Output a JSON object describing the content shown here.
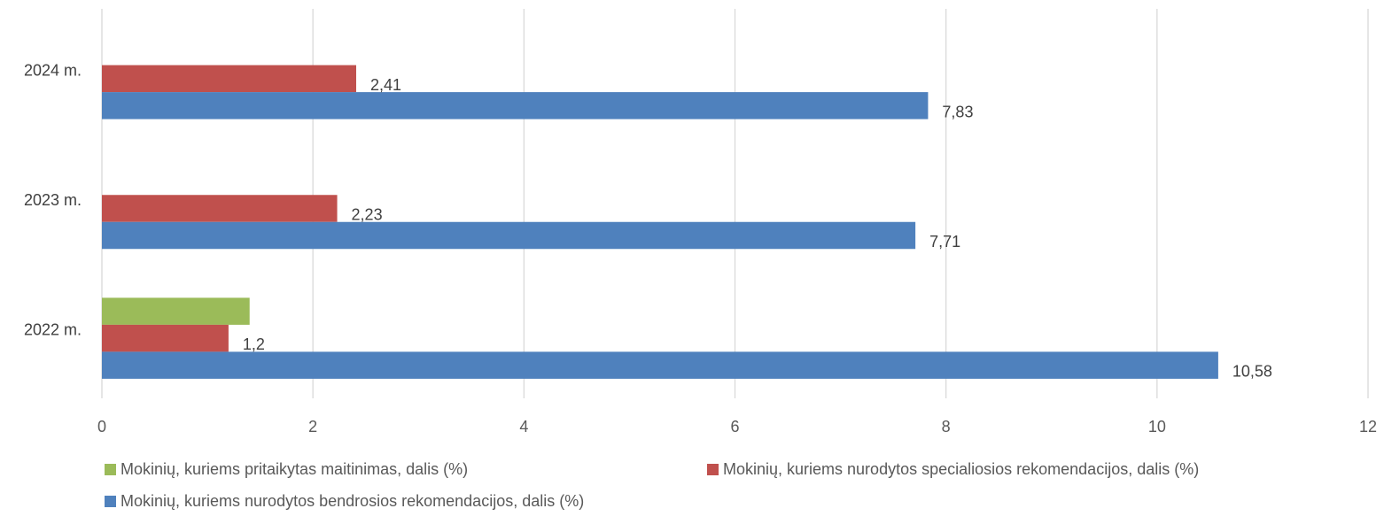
{
  "chart_data": {
    "type": "bar",
    "orientation": "horizontal",
    "categories": [
      "2022 m.",
      "2023 m.",
      "2024 m."
    ],
    "series": [
      {
        "name": "Mokinių, kuriems pritaikytas maitinimas, dalis (%)",
        "color": "#9BBB59",
        "values": [
          1.4,
          null,
          null
        ],
        "labels": [
          "",
          "",
          ""
        ]
      },
      {
        "name": "Mokinių, kuriems nurodytos specialiosios rekomendacijos, dalis (%)",
        "color": "#C0504D",
        "values": [
          1.2,
          2.23,
          2.41
        ],
        "labels": [
          "1,2",
          "2,23",
          "2,41"
        ]
      },
      {
        "name": "Mokinių, kuriems nurodytos bendrosios rekomendacijos, dalis (%)",
        "color": "#4F81BD",
        "values": [
          10.58,
          7.71,
          7.83
        ],
        "labels": [
          "10,58",
          "7,71",
          "7,83"
        ]
      }
    ],
    "xlim": [
      0,
      12
    ],
    "xticks": [
      "0",
      "2",
      "4",
      "6",
      "8",
      "10",
      "12"
    ],
    "grid": true,
    "legend_position": "bottom"
  }
}
